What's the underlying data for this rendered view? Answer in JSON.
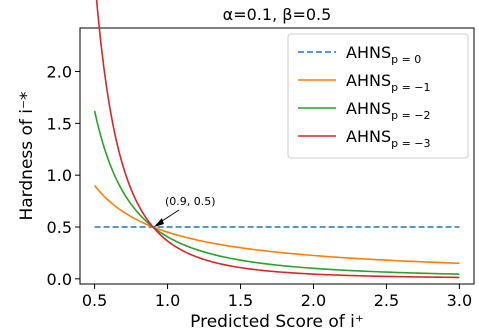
{
  "chart_data": {
    "type": "line",
    "title": "α=0.1, β=0.5",
    "xlabel": "Predicted Score of i⁺",
    "ylabel": "Hardness of i⁻*",
    "xlim": [
      0.4,
      3.1
    ],
    "ylim": [
      -0.05,
      2.42
    ],
    "xticks": [
      "0.5",
      "1.0",
      "1.5",
      "2.0",
      "2.5",
      "3.0"
    ],
    "yticks": [
      "0.0",
      "0.5",
      "1.0",
      "1.5",
      "2.0"
    ],
    "grid": false,
    "legend_position": "top-right",
    "series": [
      {
        "name": "AHNS",
        "subscript": "p = 0",
        "color": "#1f77b4",
        "dash": true,
        "p": 0
      },
      {
        "name": "AHNS",
        "subscript": "p = −1",
        "color": "#ff7f0e",
        "dash": false,
        "p": -1
      },
      {
        "name": "AHNS",
        "subscript": "p = −2",
        "color": "#2ca02c",
        "dash": false,
        "p": -2
      },
      {
        "name": "AHNS",
        "subscript": "p = −3",
        "color": "#d62728",
        "dash": false,
        "p": -3
      }
    ],
    "x_range": [
      0.5,
      3.0
    ],
    "annotation": {
      "text": "(0.9, 0.5)",
      "point": [
        0.9,
        0.5
      ]
    }
  }
}
